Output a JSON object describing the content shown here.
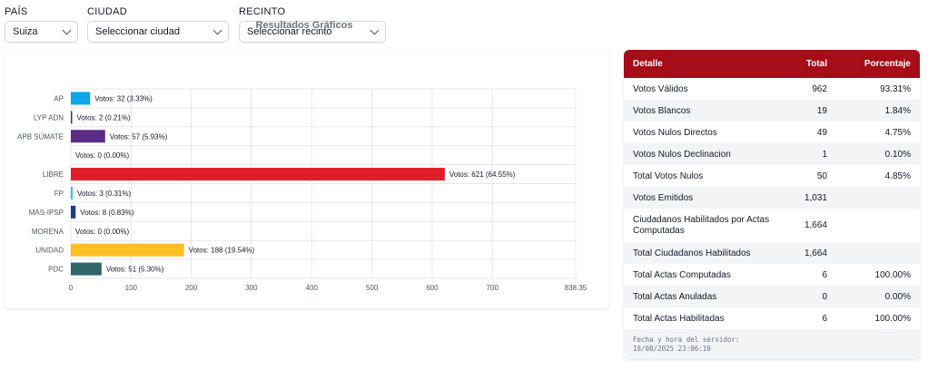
{
  "filters": {
    "pais": {
      "label": "PAÍS",
      "value": "Suiza"
    },
    "ciudad": {
      "label": "CIUDAD",
      "value": "Seleccionar ciudad"
    },
    "recinto": {
      "label": "RECINTO",
      "value": "Seleccionar recinto"
    }
  },
  "chart_data": {
    "type": "bar",
    "orientation": "horizontal",
    "title": "Resultados Gráficos",
    "categories": [
      "AP",
      "LYP ADN",
      "APB SÚMATE",
      "",
      "LIBRE",
      "FP",
      "MAS-IPSP",
      "MORENA",
      "UNIDAD",
      "PDC"
    ],
    "values": [
      32,
      2,
      57,
      0,
      621,
      3,
      8,
      0,
      188,
      51
    ],
    "labels": [
      "Votos: 32 (3.33%)",
      "Votos: 2 (0.21%)",
      "Votos: 57 (5.93%)",
      "Votos: 0 (0.00%)",
      "Votos: 621 (64.55%)",
      "Votos: 3 (0.31%)",
      "Votos: 8 (0.83%)",
      "Votos: 0 (0.00%)",
      "Votos: 188 (19.54%)",
      "Votos: 51 (5.30%)"
    ],
    "colors": [
      "#0ea5e9",
      "#374151",
      "#5b2c83",
      "#ffffff",
      "#e11d2a",
      "#38bdf8",
      "#1e3a8a",
      "#9ca3af",
      "#fbbf24",
      "#2f6667"
    ],
    "xticks": [
      "0",
      "100",
      "200",
      "300",
      "400",
      "500",
      "600",
      "700",
      "838.35"
    ],
    "xlim": [
      0,
      838.35
    ],
    "grid": true
  },
  "table": {
    "headers": [
      "Detalle",
      "Total",
      "Porcentaje"
    ],
    "rows": [
      [
        "Votos Válidos",
        "962",
        "93.31%"
      ],
      [
        "Votos Blancos",
        "19",
        "1.84%"
      ],
      [
        "Votos Nulos Directos",
        "49",
        "4.75%"
      ],
      [
        "Votos Nulos Declinacion",
        "1",
        "0.10%"
      ],
      [
        "Total Votos Nulos",
        "50",
        "4.85%"
      ],
      [
        "Votos Emitidos",
        "1,031",
        ""
      ],
      [
        "Ciudadanos Habilitados por Actas Computadas",
        "1,664",
        ""
      ],
      [
        "Total Ciudadanos Habilitados",
        "1,664",
        ""
      ],
      [
        "Total Actas Computadas",
        "6",
        "100.00%"
      ],
      [
        "Total Actas Anuladas",
        "0",
        "0.00%"
      ],
      [
        "Total Actas Habilitadas",
        "6",
        "100.00%"
      ]
    ],
    "server_time_label": "Fecha y hora del servidor:",
    "server_time": "18/08/2025 23:06:10"
  }
}
